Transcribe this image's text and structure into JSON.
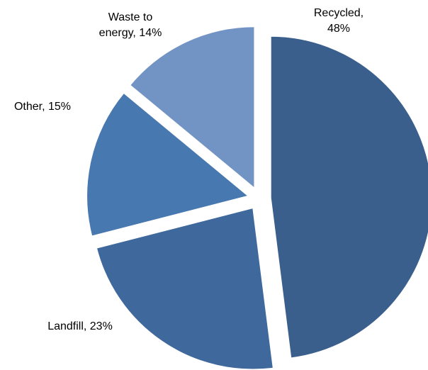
{
  "chart_data": {
    "type": "pie",
    "title": "",
    "slices": [
      {
        "label_line1": "Recycled,",
        "label_line2": "48%",
        "value": 48,
        "color": "#3a5f8c"
      },
      {
        "label_line1": "Landfill, 23%",
        "label_line2": "",
        "value": 23,
        "color": "#3f699c"
      },
      {
        "label_line1": "Other, 15%",
        "label_line2": "",
        "value": 15,
        "color": "#4778b0"
      },
      {
        "label_line1": "Waste to",
        "label_line2": "energy, 14%",
        "value": 14,
        "color": "#7294c4"
      }
    ],
    "exploded": true,
    "legend": "none"
  }
}
